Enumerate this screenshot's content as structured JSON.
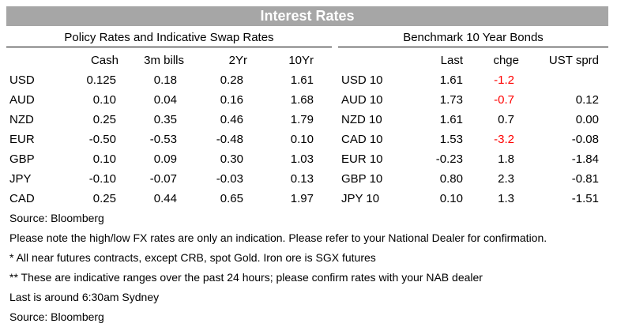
{
  "title": "Interest Rates",
  "policy": {
    "header": "Policy Rates and Indicative Swap Rates",
    "columns": [
      "",
      "Cash",
      "3m bills",
      "2Yr",
      "10Yr"
    ],
    "rows": [
      {
        "label": "USD",
        "cash": "0.125",
        "bills_3m": "0.18",
        "yr2": "0.28",
        "yr10": "1.61"
      },
      {
        "label": "AUD",
        "cash": "0.10",
        "bills_3m": "0.04",
        "yr2": "0.16",
        "yr10": "1.68"
      },
      {
        "label": "NZD",
        "cash": "0.25",
        "bills_3m": "0.35",
        "yr2": "0.46",
        "yr10": "1.79"
      },
      {
        "label": "EUR",
        "cash": "-0.50",
        "bills_3m": "-0.53",
        "yr2": "-0.48",
        "yr10": "0.10"
      },
      {
        "label": "GBP",
        "cash": "0.10",
        "bills_3m": "0.09",
        "yr2": "0.30",
        "yr10": "1.03"
      },
      {
        "label": "JPY",
        "cash": "-0.10",
        "bills_3m": "-0.07",
        "yr2": "-0.03",
        "yr10": "0.13"
      },
      {
        "label": "CAD",
        "cash": "0.25",
        "bills_3m": "0.44",
        "yr2": "0.65",
        "yr10": "1.97"
      }
    ]
  },
  "bonds": {
    "header": "Benchmark 10 Year Bonds",
    "columns": [
      "",
      "Last",
      "chge",
      "UST sprd"
    ],
    "rows": [
      {
        "label": "USD 10",
        "last": "1.61",
        "chge": "-1.2",
        "ust_sprd": "",
        "chge_negative": true
      },
      {
        "label": "AUD 10",
        "last": "1.73",
        "chge": "-0.7",
        "ust_sprd": "0.12",
        "chge_negative": true
      },
      {
        "label": "NZD 10",
        "last": "1.61",
        "chge": "0.7",
        "ust_sprd": "0.00",
        "chge_negative": false
      },
      {
        "label": "CAD 10",
        "last": "1.53",
        "chge": "-3.2",
        "ust_sprd": "-0.08",
        "chge_negative": true
      },
      {
        "label": "EUR 10",
        "last": "-0.23",
        "chge": "1.8",
        "ust_sprd": "-1.84",
        "chge_negative": false
      },
      {
        "label": "GBP 10",
        "last": "0.80",
        "chge": "2.3",
        "ust_sprd": "-0.81",
        "chge_negative": false
      },
      {
        "label": "JPY 10",
        "last": "0.10",
        "chge": "1.3",
        "ust_sprd": "-1.51",
        "chge_negative": false
      }
    ]
  },
  "notes": [
    "Source: Bloomberg",
    "Please note the high/low FX rates are only an indication. Please refer to your National Dealer for confirmation.",
    "* All near futures contracts, except CRB, spot Gold.  Iron ore is SGX futures",
    "** These are indicative ranges over the past 24 hours; please confirm rates with your NAB dealer",
    "Last is around 6:30am Sydney",
    "Source: Bloomberg"
  ],
  "colors": {
    "title_background": "#a6a6a6",
    "title_text": "#ffffff",
    "negative_change": "#ff0000"
  }
}
